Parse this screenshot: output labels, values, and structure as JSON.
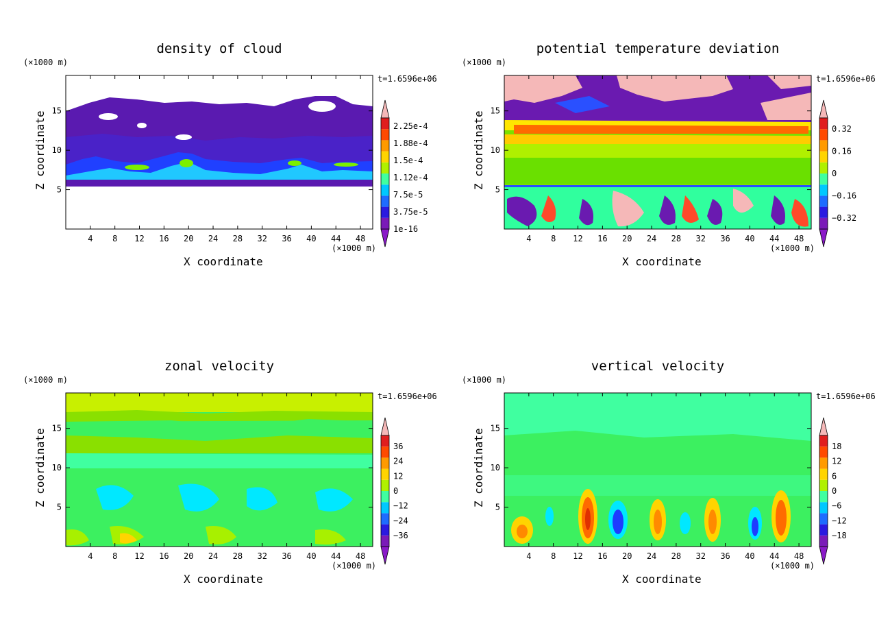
{
  "chart_data": [
    {
      "type": "heatmap",
      "title": "density of cloud",
      "xlabel": "X coordinate",
      "ylabel": "Z coordinate",
      "x_unit": "(×1000 m)",
      "y_unit": "(×1000 m)",
      "time": "t=1.6596e+06",
      "xlim": [
        0,
        50
      ],
      "ylim": [
        0,
        19.5
      ],
      "xticks": [
        "4",
        "8",
        "12",
        "16",
        "20",
        "24",
        "28",
        "32",
        "36",
        "40",
        "44",
        "48"
      ],
      "yticks": [
        "5",
        "10",
        "15"
      ],
      "colorbar": [
        "1e-16",
        "3.75e-5",
        "7.5e-5",
        "1.12e-4",
        "1.5e-4",
        "1.88e-4",
        "2.25e-4"
      ],
      "colors": {
        "cloud_top": "#6a0dad",
        "band_mid": "#1e3cff",
        "band_low": "#1fd4ff",
        "highlight": "#7cf000"
      }
    },
    {
      "type": "heatmap",
      "title": "potential temperature deviation",
      "xlabel": "X coordinate",
      "ylabel": "Z coordinate",
      "x_unit": "(×1000 m)",
      "y_unit": "(×1000 m)",
      "time": "t=1.6596e+06",
      "xlim": [
        0,
        50
      ],
      "ylim": [
        0,
        19.5
      ],
      "xticks": [
        "4",
        "8",
        "12",
        "16",
        "20",
        "24",
        "28",
        "32",
        "36",
        "40",
        "44",
        "48"
      ],
      "yticks": [
        "5",
        "10",
        "15"
      ],
      "colorbar": [
        "−0.32",
        "−0.16",
        "0",
        "0.16",
        "0.32"
      ],
      "colors": {
        "upper": "#f5b8b8",
        "mid": "#7ae000",
        "lower": "#3cff9e"
      }
    },
    {
      "type": "heatmap",
      "title": "zonal velocity",
      "xlabel": "X coordinate",
      "ylabel": "Z coordinate",
      "x_unit": "(×1000 m)",
      "y_unit": "(×1000 m)",
      "time": "t=1.6596e+06",
      "xlim": [
        0,
        50
      ],
      "ylim": [
        0,
        19.5
      ],
      "xticks": [
        "4",
        "8",
        "12",
        "16",
        "20",
        "24",
        "28",
        "32",
        "36",
        "40",
        "44",
        "48"
      ],
      "yticks": [
        "5",
        "10",
        "15"
      ],
      "colorbar": [
        "−36",
        "−24",
        "−12",
        "0",
        "12",
        "24",
        "36"
      ],
      "colors": {
        "top": "#c8f000",
        "mid": "#40ff80",
        "low": "#00e8ff"
      }
    },
    {
      "type": "heatmap",
      "title": "vertical velocity",
      "xlabel": "X coordinate",
      "ylabel": "Z coordinate",
      "x_unit": "(×1000 m)",
      "y_unit": "(×1000 m)",
      "time": "t=1.6596e+06",
      "xlim": [
        0,
        50
      ],
      "ylim": [
        0,
        19.5
      ],
      "xticks": [
        "4",
        "8",
        "12",
        "16",
        "20",
        "24",
        "28",
        "32",
        "36",
        "40",
        "44",
        "48"
      ],
      "yticks": [
        "5",
        "10",
        "15"
      ],
      "colorbar": [
        "−18",
        "−12",
        "−6",
        "0",
        "6",
        "12",
        "18"
      ],
      "colors": {
        "background": "#3cf060",
        "updraft": "#ff6a00",
        "downdraft": "#1e3cff"
      }
    }
  ]
}
